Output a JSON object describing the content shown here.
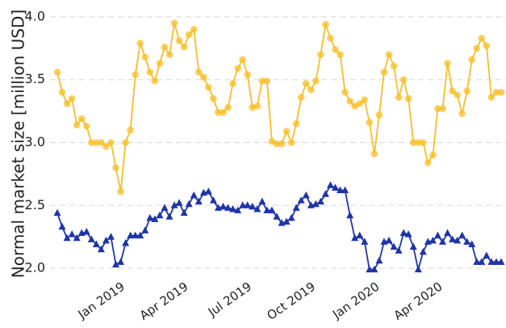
{
  "chart_data": {
    "type": "line",
    "y_label": "Normal market size [million USD]",
    "x": [
      0,
      1,
      2,
      3,
      4,
      5,
      6,
      7,
      8,
      9,
      10,
      11,
      12,
      13,
      14,
      15,
      16,
      17,
      18,
      19,
      20,
      21,
      22,
      23,
      24,
      25,
      26,
      27,
      28,
      29,
      30,
      31,
      32,
      33,
      34,
      35,
      36,
      37,
      38,
      39,
      40,
      41,
      42,
      43,
      44,
      45,
      46,
      47,
      48,
      49,
      50,
      51,
      52,
      53,
      54,
      55,
      56,
      57,
      58,
      59,
      60,
      61,
      62,
      63,
      64,
      65,
      66,
      67,
      68,
      69,
      70,
      71,
      72,
      73,
      74,
      75,
      76,
      77,
      78,
      79,
      80,
      81,
      82,
      83,
      84,
      85,
      86,
      87,
      88,
      89,
      90,
      91
    ],
    "xlim": [
      0,
      91
    ],
    "xticks": [
      {
        "value": 13,
        "label": "Jan 2019"
      },
      {
        "value": 26,
        "label": "Apr 2019"
      },
      {
        "value": 39,
        "label": "Jul 2019"
      },
      {
        "value": 52.1,
        "label": "Oct 2019"
      },
      {
        "value": 65.2,
        "label": "Jan 2020"
      },
      {
        "value": 78.1,
        "label": "Apr 2020"
      }
    ],
    "ylim": [
      1.93,
      4.07
    ],
    "yticks": [
      {
        "value": 2,
        "label": "2.0"
      },
      {
        "value": 2.5,
        "label": "2.5"
      },
      {
        "value": 3,
        "label": "3.0"
      },
      {
        "value": 3.5,
        "label": "3.5"
      },
      {
        "value": 4,
        "label": "4.0"
      }
    ],
    "grid": true,
    "series": [
      {
        "color": "#f7bf2a",
        "marker": "circle",
        "values": [
          3.56,
          3.4,
          3.31,
          3.35,
          3.14,
          3.19,
          3.13,
          3.0,
          3.0,
          3.0,
          2.97,
          3.0,
          2.8,
          2.61,
          3.0,
          3.1,
          3.54,
          3.79,
          3.68,
          3.56,
          3.49,
          3.63,
          3.76,
          3.7,
          3.95,
          3.81,
          3.76,
          3.86,
          3.9,
          3.56,
          3.52,
          3.44,
          3.35,
          3.24,
          3.24,
          3.28,
          3.47,
          3.59,
          3.66,
          3.54,
          3.28,
          3.29,
          3.49,
          3.49,
          3.01,
          2.99,
          2.99,
          3.09,
          3.0,
          3.15,
          3.36,
          3.47,
          3.42,
          3.49,
          3.7,
          3.94,
          3.83,
          3.74,
          3.7,
          3.4,
          3.33,
          3.29,
          3.31,
          3.34,
          3.16,
          2.91,
          3.22,
          3.56,
          3.7,
          3.61,
          3.36,
          3.5,
          3.35,
          3.0,
          3.0,
          3.0,
          2.84,
          2.9,
          3.27,
          3.27,
          3.63,
          3.41,
          3.38,
          3.23,
          3.41,
          3.66,
          3.75,
          3.83,
          3.77,
          3.36,
          3.4,
          3.4
        ]
      },
      {
        "color": "#1f35a6",
        "marker": "triangle",
        "values": [
          2.44,
          2.33,
          2.24,
          2.27,
          2.24,
          2.28,
          2.29,
          2.23,
          2.19,
          2.15,
          2.22,
          2.25,
          2.03,
          2.05,
          2.2,
          2.26,
          2.26,
          2.26,
          2.3,
          2.4,
          2.39,
          2.42,
          2.48,
          2.41,
          2.5,
          2.52,
          2.44,
          2.51,
          2.58,
          2.53,
          2.6,
          2.61,
          2.54,
          2.48,
          2.49,
          2.48,
          2.47,
          2.46,
          2.5,
          2.5,
          2.49,
          2.47,
          2.53,
          2.46,
          2.46,
          2.41,
          2.36,
          2.37,
          2.4,
          2.48,
          2.54,
          2.58,
          2.5,
          2.51,
          2.53,
          2.59,
          2.66,
          2.64,
          2.62,
          2.62,
          2.42,
          2.24,
          2.26,
          2.21,
          1.99,
          1.99,
          2.06,
          2.21,
          2.22,
          2.17,
          2.14,
          2.28,
          2.27,
          2.17,
          1.99,
          2.13,
          2.21,
          2.22,
          2.26,
          2.21,
          2.28,
          2.23,
          2.22,
          2.26,
          2.21,
          2.19,
          2.05,
          2.05,
          2.1,
          2.05,
          2.05,
          2.05
        ]
      }
    ]
  }
}
